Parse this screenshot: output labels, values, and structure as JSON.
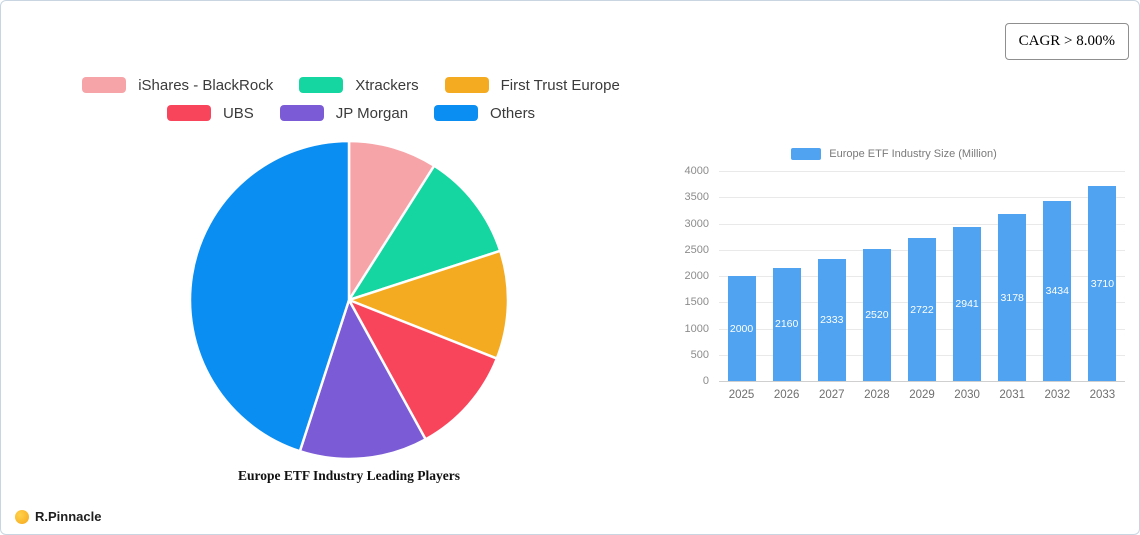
{
  "header": {
    "cagr_label": "CAGR > 8.00%"
  },
  "footer": {
    "brand": "R.Pinnacle",
    "brand_color": "#f6a71c"
  },
  "chart_data": [
    {
      "type": "pie",
      "title": "Europe ETF Industry Leading Players",
      "labels": [
        "iShares - BlackRock",
        "Xtrackers",
        "First Trust Europe",
        "UBS",
        "JP Morgan",
        "Others"
      ],
      "values": [
        9,
        11,
        11,
        11,
        13,
        45
      ],
      "colors": [
        "#F7A4A8",
        "#15D5A0",
        "#F5AB21",
        "#F9455C",
        "#7B5CD6",
        "#0A8EF2"
      ],
      "unit": "percent-share-estimated",
      "start_angle": "top",
      "direction": "clockwise",
      "legend_position": "top",
      "legend_rows": [
        3,
        3
      ]
    },
    {
      "type": "bar",
      "title": "Europe ETF Industry Size (Million)",
      "categories": [
        "2025",
        "2026",
        "2027",
        "2028",
        "2029",
        "2030",
        "2031",
        "2032",
        "2033"
      ],
      "values": [
        2000,
        2160,
        2333,
        2520,
        2722,
        2941,
        3178,
        3434,
        3710
      ],
      "ylim": [
        0,
        4000
      ],
      "ytick_step": 500,
      "bar_color": "#4FA3F1",
      "grid": true,
      "value_labels": "inside-centered-white",
      "legend_position": "top"
    }
  ]
}
